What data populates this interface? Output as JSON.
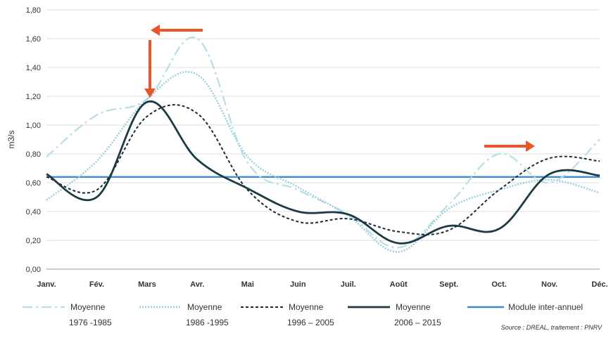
{
  "chart_data": {
    "type": "line",
    "ylabel": "m3/s",
    "ylim": [
      0,
      1.8
    ],
    "y_ticks": [
      "0,00",
      "0,20",
      "0,40",
      "0,60",
      "0,80",
      "1,00",
      "1,20",
      "1,40",
      "1,60",
      "1,80"
    ],
    "categories": [
      "Janv.",
      "Fév.",
      "Mars",
      "Avr.",
      "Mai",
      "Juin",
      "Juil.",
      "Août",
      "Sept.",
      "Oct.",
      "Nov.",
      "Déc."
    ],
    "grid": true,
    "legend_position": "bottom",
    "series": [
      {
        "label_line1": "Moyenne",
        "label_line2": "1976 -1985",
        "color": "#b7dde6",
        "dash": "long-dash-dot",
        "values": [
          0.78,
          1.07,
          1.18,
          1.6,
          0.74,
          0.55,
          0.38,
          0.15,
          0.45,
          0.8,
          0.6,
          0.9
        ]
      },
      {
        "label_line1": "Moyenne",
        "label_line2": "1986 -1995",
        "color": "#9fcfdd",
        "dash": "dotted",
        "values": [
          0.48,
          0.75,
          1.18,
          1.35,
          0.78,
          0.57,
          0.37,
          0.12,
          0.42,
          0.55,
          0.62,
          0.53
        ]
      },
      {
        "label_line1": "Moyenne",
        "label_line2": "1996 – 2005",
        "color": "#1c2b33",
        "dash": "short-dash",
        "values": [
          0.64,
          0.55,
          1.06,
          1.08,
          0.55,
          0.33,
          0.35,
          0.26,
          0.27,
          0.55,
          0.77,
          0.75
        ]
      },
      {
        "label_line1": "Moyenne",
        "label_line2": "2006 – 2015",
        "color": "#1c3a44",
        "dash": "solid",
        "values": [
          0.66,
          0.5,
          1.16,
          0.76,
          0.56,
          0.4,
          0.38,
          0.18,
          0.3,
          0.28,
          0.66,
          0.65
        ]
      }
    ],
    "reference_line": {
      "label": "Module inter-annuel",
      "value": 0.64,
      "color": "#3d8dd0"
    },
    "annotations": [
      {
        "type": "arrow",
        "direction": "left",
        "color": "#e8562a"
      },
      {
        "type": "arrow",
        "direction": "down",
        "color": "#e8562a"
      },
      {
        "type": "arrow",
        "direction": "right",
        "color": "#e8562a"
      }
    ],
    "source": "Source : DREAL, traitement : PNRV"
  }
}
